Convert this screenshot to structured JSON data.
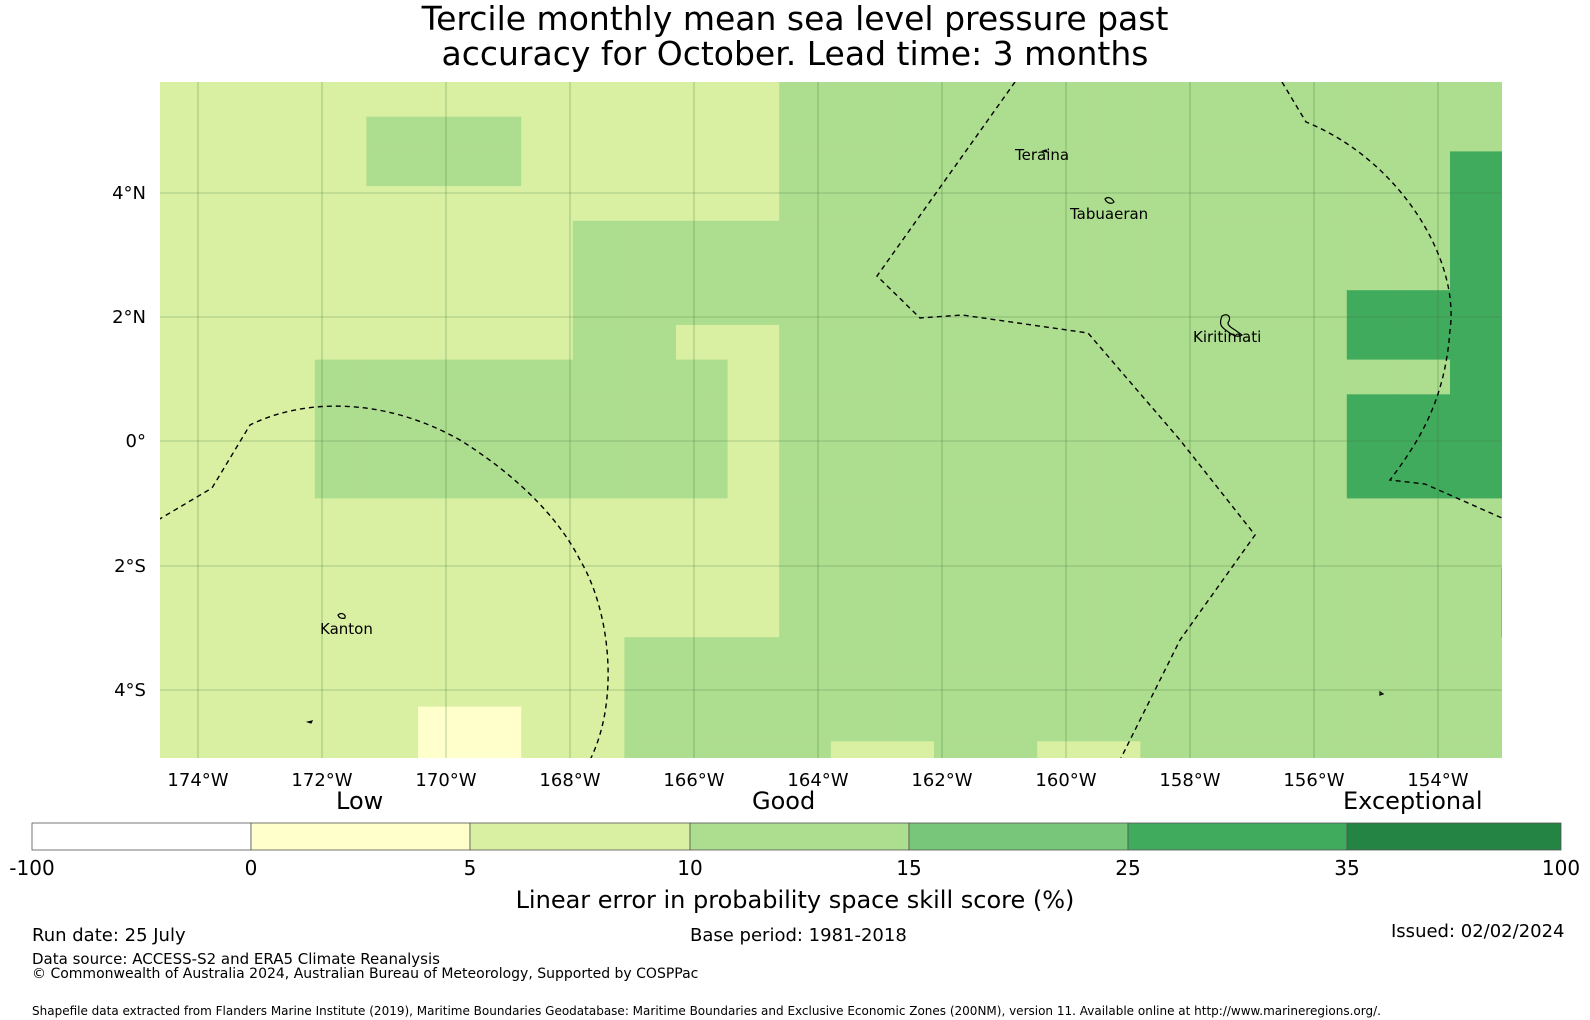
{
  "title_line1": "Tercile monthly mean sea level pressure past",
  "title_line2": "accuracy for October. Lead time: 3 months",
  "map": {
    "lon_ticks": [
      "174°W",
      "172°W",
      "170°W",
      "168°W",
      "166°W",
      "164°W",
      "162°W",
      "160°W",
      "158°W",
      "156°W",
      "154°W"
    ],
    "lat_ticks": [
      "4°N",
      "2°N",
      "0°",
      "2°S",
      "4°S"
    ],
    "places": [
      "Teraina",
      "Tabuaeran",
      "Kiritimati",
      "Kanton"
    ]
  },
  "colorbar": {
    "category_labels": [
      "Low",
      "Good",
      "Exceptional"
    ],
    "ticks": [
      "-100",
      "0",
      "5",
      "10",
      "15",
      "25",
      "35",
      "100"
    ],
    "colors": [
      "#ffffff",
      "#ffffcc",
      "#d9f0a3",
      "#addd8e",
      "#78c679",
      "#41ab5d",
      "#238443"
    ],
    "title": "Linear error in probability space skill score (%)"
  },
  "footer": {
    "run_date": "Run date: 25 July",
    "base_period": "Base period: 1981-2018",
    "issued": "Issued: 02/02/2024",
    "data_source": "Data source: ACCESS-S2 and ERA5 Climate Reanalysis",
    "copyright": "© Commonwealth of Australia 2024, Australian Bureau of Meteorology, Supported by COSPPac",
    "shapefile": "Shapefile data extracted from Flanders Marine Institute (2019), Maritime Boundaries Geodatabase: Maritime Boundaries and Exclusive Economic Zones (200NM), version 11. Available online at http://www.marineregions.org/."
  }
}
